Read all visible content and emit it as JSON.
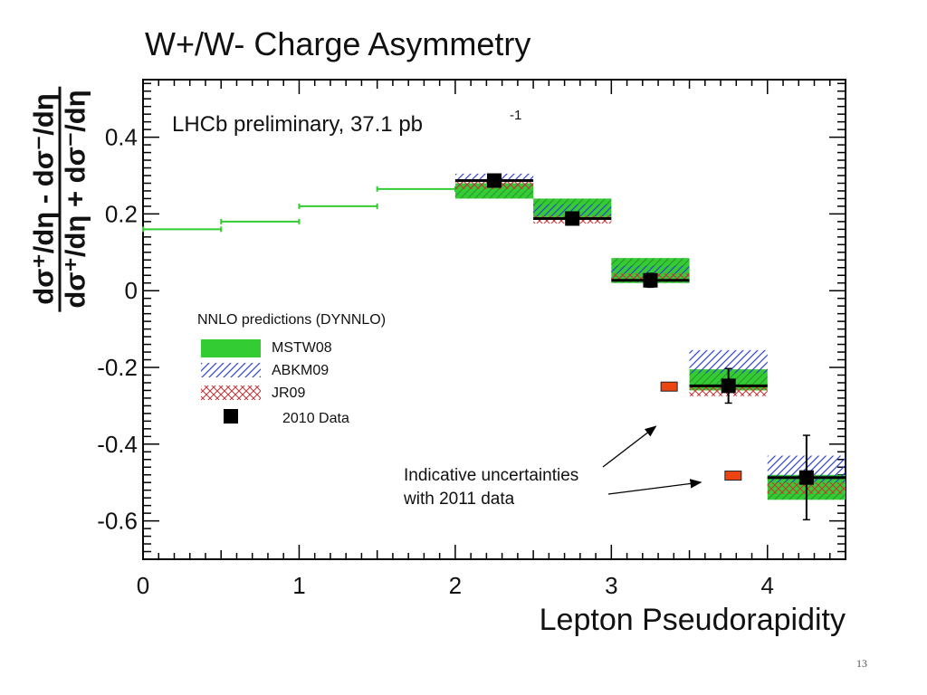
{
  "slide": {
    "number": "13"
  },
  "chart_data": {
    "type": "scatter",
    "title": "W+/W- Charge Asymmetry",
    "xlabel": "Lepton Pseudorapidity",
    "ylabel": {
      "numerator": "dσ⁺/dη - dσ⁻/dη",
      "denominator": "dσ⁺/dη + dσ⁻/dη"
    },
    "xlim": [
      0,
      4.5
    ],
    "ylim": [
      -0.7,
      0.55
    ],
    "xticks": [
      0,
      1,
      2,
      3,
      4
    ],
    "xtick_labels": [
      "0",
      "1",
      "2",
      "3",
      "4"
    ],
    "yticks": [
      -0.6,
      -0.4,
      -0.2,
      0,
      0.2,
      0.4
    ],
    "ytick_labels": [
      "-0.6",
      "-0.4",
      "-0.2",
      "0",
      "0.2",
      "0.4"
    ],
    "grid": false,
    "preliminary": {
      "text": "LHCb preliminary, 37.1 pb",
      "sup": "-1"
    },
    "legend": {
      "title": "NNLO predictions (DYNNLO)",
      "entries": [
        "MSTW08",
        "ABKM09",
        "JR09",
        "2010 Data"
      ],
      "placement": "middle-left"
    },
    "series": [
      {
        "name": "MSTW08",
        "style": "band",
        "color": "#33cc33",
        "centerline_bins": [
          {
            "x0": 0.0,
            "x1": 0.5,
            "y": 0.16
          },
          {
            "x0": 0.5,
            "x1": 1.0,
            "y": 0.18
          },
          {
            "x0": 1.0,
            "x1": 1.5,
            "y": 0.22
          },
          {
            "x0": 1.5,
            "x1": 2.0,
            "y": 0.265
          }
        ],
        "bands": [
          {
            "x0": 2.0,
            "x1": 2.5,
            "lo": 0.24,
            "hi": 0.28
          },
          {
            "x0": 2.5,
            "x1": 3.0,
            "lo": 0.19,
            "hi": 0.24
          },
          {
            "x0": 3.0,
            "x1": 3.5,
            "lo": 0.02,
            "hi": 0.085
          },
          {
            "x0": 3.5,
            "x1": 4.0,
            "lo": -0.26,
            "hi": -0.205
          },
          {
            "x0": 4.0,
            "x1": 4.5,
            "lo": -0.545,
            "hi": -0.48
          }
        ]
      },
      {
        "name": "ABKM09",
        "style": "hatch",
        "color": "#3344cc",
        "bands": [
          {
            "x0": 2.0,
            "x1": 2.5,
            "lo": 0.27,
            "hi": 0.305
          },
          {
            "x0": 2.5,
            "x1": 3.0,
            "lo": 0.19,
            "hi": 0.225
          },
          {
            "x0": 3.0,
            "x1": 3.5,
            "lo": 0.03,
            "hi": 0.065
          },
          {
            "x0": 3.5,
            "x1": 4.0,
            "lo": -0.215,
            "hi": -0.155
          },
          {
            "x0": 4.0,
            "x1": 4.5,
            "lo": -0.5,
            "hi": -0.43
          }
        ]
      },
      {
        "name": "JR09",
        "style": "crosshatch",
        "color": "#cc3333",
        "bands": [
          {
            "x0": 2.0,
            "x1": 2.5,
            "lo": 0.265,
            "hi": 0.285
          },
          {
            "x0": 2.5,
            "x1": 3.0,
            "lo": 0.175,
            "hi": 0.195
          },
          {
            "x0": 3.0,
            "x1": 3.5,
            "lo": 0.025,
            "hi": 0.045
          },
          {
            "x0": 3.5,
            "x1": 4.0,
            "lo": -0.275,
            "hi": -0.245
          },
          {
            "x0": 4.0,
            "x1": 4.5,
            "lo": -0.53,
            "hi": -0.5
          }
        ]
      },
      {
        "name": "2010 Data",
        "style": "points",
        "color": "#000000",
        "points": [
          {
            "x": 2.25,
            "y": 0.287,
            "xerr": 0.25,
            "yerr": 0.012
          },
          {
            "x": 2.75,
            "y": 0.188,
            "xerr": 0.25,
            "yerr": 0.016
          },
          {
            "x": 3.25,
            "y": 0.027,
            "xerr": 0.25,
            "yerr": 0.018
          },
          {
            "x": 3.75,
            "y": -0.248,
            "xerr": 0.25,
            "yerr": 0.045
          },
          {
            "x": 4.25,
            "y": -0.487,
            "xerr": 0.25,
            "yerr": 0.11
          }
        ]
      },
      {
        "name": "Indicative uncertainties with 2011 data",
        "style": "markers",
        "color": "#ee4411",
        "points": [
          {
            "x": 3.37,
            "y": -0.25
          },
          {
            "x": 3.78,
            "y": -0.482
          }
        ]
      }
    ],
    "annotation": {
      "lines": [
        "Indicative uncertainties",
        "with 2011 data"
      ],
      "arrows_to": [
        {
          "x": 3.25,
          "y": -0.33
        },
        {
          "x": 3.55,
          "y": -0.49
        }
      ],
      "arrow_from": {
        "x": 2.95,
        "y": -0.5
      }
    }
  }
}
